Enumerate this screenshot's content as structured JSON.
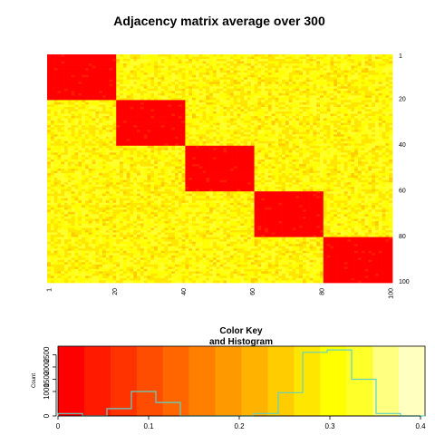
{
  "chart_data": [
    {
      "type": "heatmap",
      "title": "Adjacency matrix average over 300",
      "n": 100,
      "blocks": 5,
      "block_size": 20,
      "x_tick_labels": [
        "1",
        "20",
        "40",
        "60",
        "80",
        "100"
      ],
      "y_tick_labels": [
        "1",
        "20",
        "40",
        "60",
        "80",
        "100"
      ],
      "within_block_value": 0.02,
      "between_block_value": 0.3,
      "colors": [
        "#ff0000",
        "#ff1a00",
        "#ff3300",
        "#ff4d00",
        "#ff6600",
        "#ff8000",
        "#ff9900",
        "#ffb300",
        "#ffcc00",
        "#ffe600",
        "#ffff00",
        "#ffff2a",
        "#ffff80",
        "#ffffbf"
      ],
      "legend": "none"
    },
    {
      "type": "bar",
      "title": "Color Key",
      "subtitle": "and Histogram",
      "ylabel": "Count",
      "xlim": [
        0,
        0.405
      ],
      "ylim": [
        0,
        2850
      ],
      "x_tick_labels": [
        "0",
        "0.1",
        "0.2",
        "0.3",
        "0.4"
      ],
      "y_tick_labels": [
        "0",
        "1000",
        "1500",
        "2000",
        "2500"
      ],
      "bin_edges": [
        0,
        0.027,
        0.054,
        0.081,
        0.108,
        0.135,
        0.162,
        0.189,
        0.216,
        0.243,
        0.27,
        0.297,
        0.324,
        0.351,
        0.378,
        0.405
      ],
      "counts": [
        100,
        0,
        300,
        1000,
        550,
        0,
        0,
        0,
        100,
        950,
        2600,
        2700,
        1500,
        100,
        0
      ],
      "histogram_color": "#5fd3c3"
    }
  ]
}
